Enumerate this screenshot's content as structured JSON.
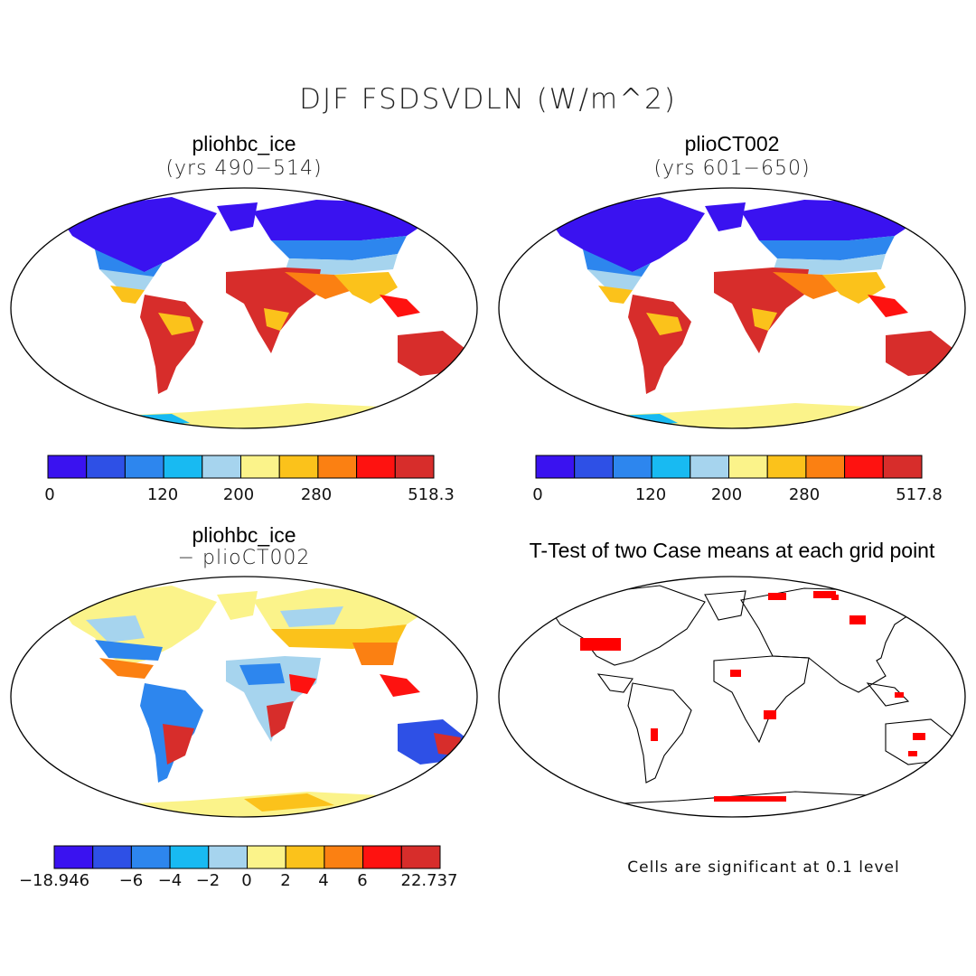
{
  "figure_title": "DJF FSDSVDLN (W/m^2)",
  "palette": [
    "#3a12f0",
    "#2e50e6",
    "#2d86ee",
    "#18baf2",
    "#a6d4ee",
    "#fbf38a",
    "#fbc21b",
    "#fb8012",
    "#fe1210",
    "#d72d2b"
  ],
  "panels": [
    {
      "title": "pliohbc_ice",
      "subtitle": "(yrs 490−514)",
      "colorbar": {
        "labels": [
          "0",
          "120",
          "200",
          "280",
          "518.3"
        ]
      }
    },
    {
      "title": "plioCT002",
      "subtitle": "(yrs 601−650)",
      "colorbar": {
        "labels": [
          "0",
          "120",
          "200",
          "280",
          "517.8"
        ]
      }
    },
    {
      "title": "pliohbc_ice",
      "subtitle": "− plioCT002",
      "colorbar": {
        "labels": [
          "−18.946",
          "−6",
          "−4",
          "−2",
          "0",
          "2",
          "4",
          "6",
          "22.737"
        ]
      }
    },
    {
      "title": "T-Test of two Case means at each grid point",
      "note": "Cells are significant at 0.1 level",
      "significance_color": "#ff0000"
    }
  ]
}
